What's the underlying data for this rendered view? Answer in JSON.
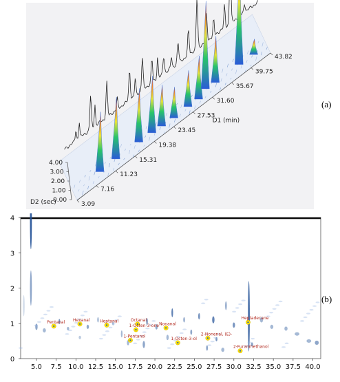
{
  "panels": {
    "a_label": "(a)",
    "b_label": "(b)"
  },
  "chart_data": [
    {
      "type": "surface",
      "d1_axis_label": "D1 (min)",
      "d2_axis_label": "D2 (sec)",
      "d1_ticks": [
        "3.09",
        "7.16",
        "11.23",
        "15.31",
        "19.38",
        "23.45",
        "27.53",
        "31.60",
        "35.67",
        "39.75",
        "43.82"
      ],
      "d2_ticks": [
        "0.00",
        "1.00",
        "2.00",
        "3.00",
        "4.00"
      ],
      "d1_range": [
        3.09,
        43.82
      ],
      "d2_range": [
        0,
        4
      ],
      "peaks": [
        {
          "d1": 8.6,
          "d2": 0.9,
          "height": 0.58
        },
        {
          "d1": 12.0,
          "d2": 0.95,
          "height": 0.6
        },
        {
          "d1": 16.8,
          "d2": 0.9,
          "height": 0.52
        },
        {
          "d1": 19.5,
          "d2": 0.85,
          "height": 0.55
        },
        {
          "d1": 21.5,
          "d2": 0.8,
          "height": 0.4
        },
        {
          "d1": 24.0,
          "d2": 0.7,
          "height": 0.3
        },
        {
          "d1": 27.0,
          "d2": 0.75,
          "height": 0.35
        },
        {
          "d1": 29.2,
          "d2": 0.7,
          "height": 0.42
        },
        {
          "d1": 31.0,
          "d2": 1.1,
          "height": 0.85
        },
        {
          "d1": 33.0,
          "d2": 1.0,
          "height": 0.45
        },
        {
          "d1": 38.0,
          "d2": 1.0,
          "height": 1.0
        },
        {
          "d1": 41.0,
          "d2": 0.9,
          "height": 0.15
        }
      ]
    },
    {
      "type": "heatmap",
      "x_ticks": [
        "5.0",
        "7.5",
        "10.0",
        "12.5",
        "15.0",
        "17.5",
        "20.0",
        "22.5",
        "25.0",
        "27.5",
        "30.0",
        "32.5",
        "35.0",
        "37.5",
        "40.0"
      ],
      "y_ticks": [
        "0",
        "1",
        "2",
        "3",
        "4"
      ],
      "xlim": [
        3.0,
        41.0
      ],
      "ylim": [
        0,
        4
      ],
      "annotations": [
        {
          "label": "Pentanal",
          "x": 7.2,
          "y": 0.92
        },
        {
          "label": "Hexanal",
          "x": 10.5,
          "y": 0.98
        },
        {
          "label": "Heptanal",
          "x": 13.9,
          "y": 0.95
        },
        {
          "label": "Octanal",
          "x": 17.8,
          "y": 0.98
        },
        {
          "label": "1-Octen-3-one",
          "x": 17.6,
          "y": 0.82
        },
        {
          "label": "Nonanal",
          "x": 21.4,
          "y": 0.87
        },
        {
          "label": "1-Pentanol",
          "x": 16.9,
          "y": 0.52
        },
        {
          "label": "1-Octen-3-ol",
          "x": 22.9,
          "y": 0.45
        },
        {
          "label": "2-Nonenal, (E)-",
          "x": 26.7,
          "y": 0.58
        },
        {
          "label": "Heptadecane",
          "x": 31.8,
          "y": 1.03
        },
        {
          "label": "2-Furanmethanol",
          "x": 30.8,
          "y": 0.22
        }
      ]
    }
  ]
}
